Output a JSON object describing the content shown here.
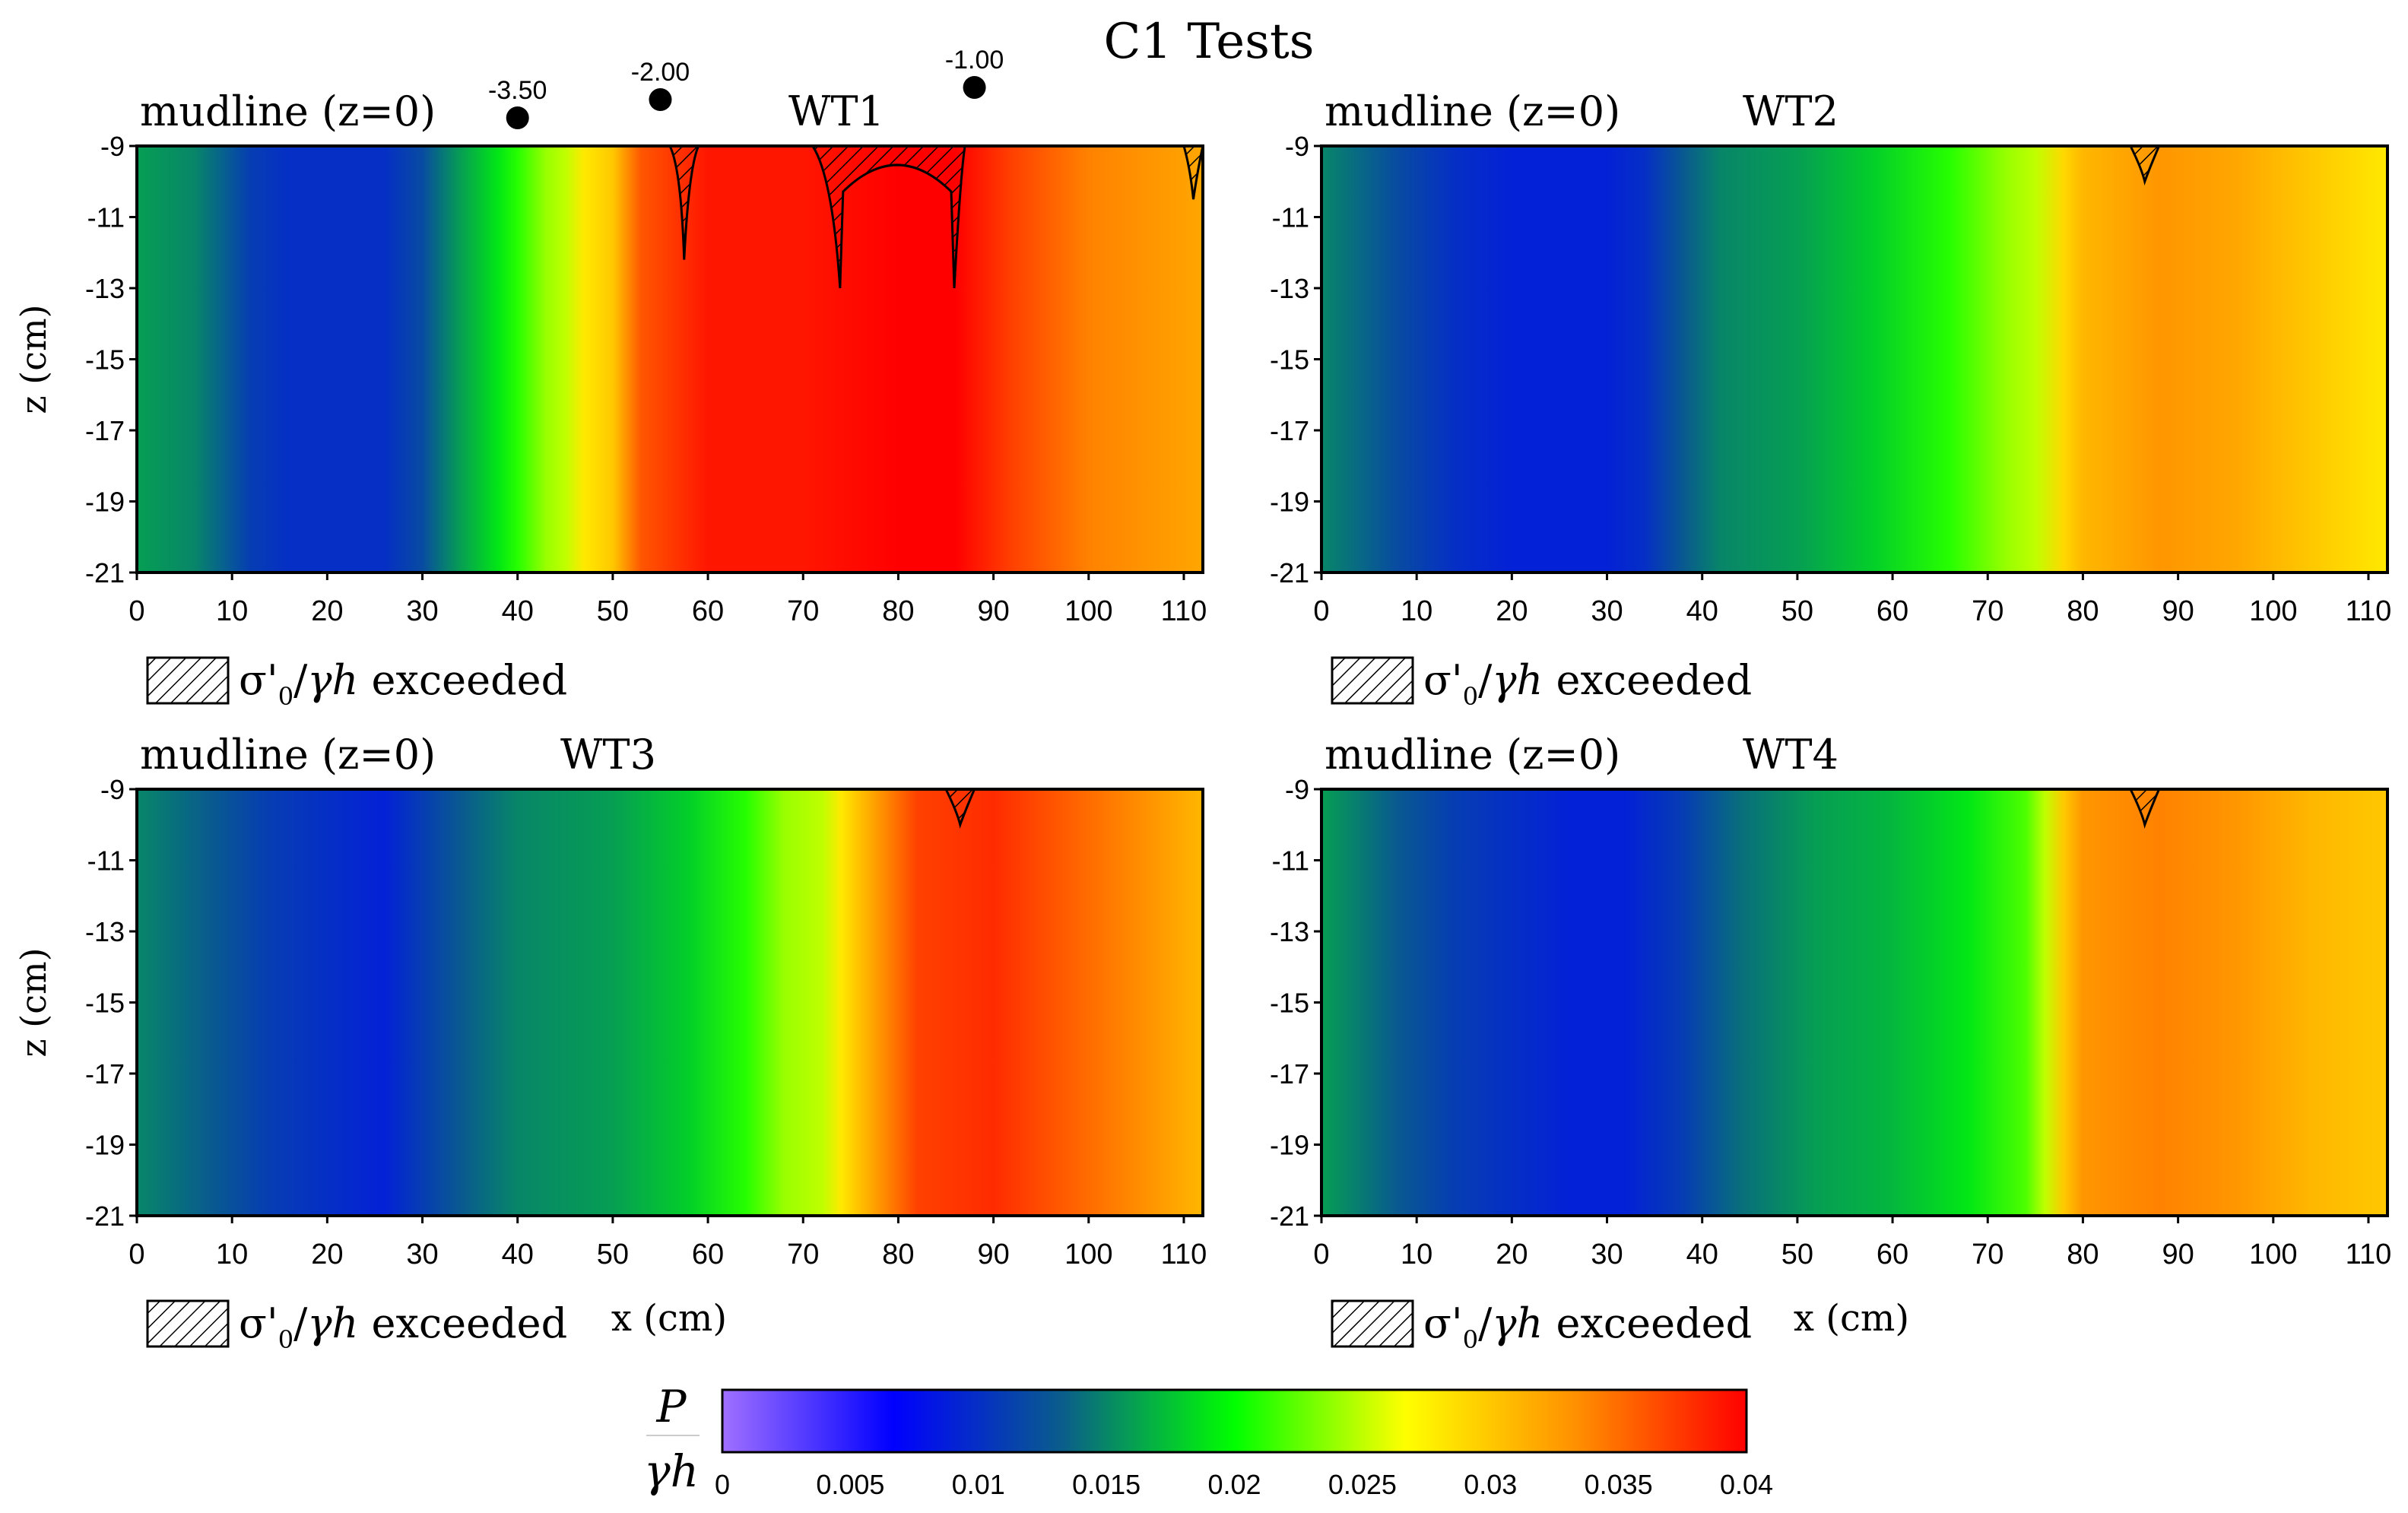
{
  "figure": {
    "title": "C1 Tests",
    "y_axis_label": "z (cm)",
    "x_axis_label": "x (cm)",
    "mudline_label": "mudline (z=0)",
    "hatch_legend": {
      "sigma": "σ'",
      "subscript": "0",
      "slash": "/",
      "gamma_h": "γh",
      "suffix": " exceeded"
    },
    "colorbar": {
      "label_numerator": "P",
      "label_denominator": "γh",
      "range": [
        0,
        0.04
      ],
      "ticks": [
        "0",
        "0.005",
        "0.01",
        "0.015",
        "0.02",
        "0.025",
        "0.03",
        "0.035",
        "0.04"
      ],
      "colors": [
        "#a070ff",
        "#0000ff",
        "#0a5e8a",
        "#00ff00",
        "#ffff00",
        "#ff9000",
        "#ff0000"
      ]
    }
  },
  "chart_data": [
    {
      "type": "heatmap",
      "name": "WT1",
      "xlim": [
        0,
        112
      ],
      "ylim": [
        -21,
        -9
      ],
      "x_ticks": [
        0,
        10,
        20,
        30,
        40,
        50,
        60,
        70,
        80,
        90,
        100,
        110
      ],
      "y_ticks": [
        -9,
        -11,
        -13,
        -15,
        -17,
        -19,
        -21
      ],
      "color_profile_x": [
        0,
        6,
        12,
        16,
        22,
        26,
        30,
        34,
        38,
        40,
        43,
        45,
        47,
        50,
        53,
        60,
        70,
        80,
        86,
        92,
        100,
        112
      ],
      "color_profile_value": [
        0.016,
        0.015,
        0.011,
        0.01,
        0.01,
        0.01,
        0.012,
        0.016,
        0.019,
        0.021,
        0.024,
        0.025,
        0.028,
        0.03,
        0.036,
        0.039,
        0.039,
        0.04,
        0.04,
        0.037,
        0.034,
        0.032
      ],
      "markers": [
        {
          "x": 40,
          "label": "-3.50"
        },
        {
          "x": 55,
          "label": "-2.00"
        },
        {
          "x": 88,
          "label": "-1.00"
        }
      ],
      "exceeded_regions": [
        {
          "x_start": 56,
          "x_end": 59,
          "z_min": -12.2
        },
        {
          "x_start": 71,
          "x_end": 87,
          "z_min": -13.0
        },
        {
          "x_start": 110,
          "x_end": 112,
          "z_min": -10.5
        }
      ]
    },
    {
      "type": "heatmap",
      "name": "WT2",
      "xlim": [
        0,
        112
      ],
      "ylim": [
        -21,
        -9
      ],
      "x_ticks": [
        0,
        10,
        20,
        30,
        40,
        50,
        60,
        70,
        80,
        90,
        100,
        110
      ],
      "y_ticks": [
        -9,
        -11,
        -13,
        -15,
        -17,
        -19,
        -21
      ],
      "color_profile_x": [
        0,
        8,
        14,
        20,
        30,
        34,
        38,
        42,
        50,
        58,
        66,
        72,
        75,
        78,
        80,
        88,
        96,
        104,
        112
      ],
      "color_profile_value": [
        0.015,
        0.012,
        0.01,
        0.009,
        0.009,
        0.01,
        0.013,
        0.015,
        0.016,
        0.018,
        0.021,
        0.024,
        0.025,
        0.029,
        0.031,
        0.033,
        0.032,
        0.03,
        0.028
      ],
      "markers": [],
      "exceeded_regions": [
        {
          "x_start": 85,
          "x_end": 88,
          "z_min": -10.0
        }
      ]
    },
    {
      "type": "heatmap",
      "name": "WT3",
      "xlim": [
        0,
        112
      ],
      "ylim": [
        -21,
        -9
      ],
      "x_ticks": [
        0,
        10,
        20,
        30,
        40,
        50,
        60,
        70,
        80,
        90,
        100,
        110
      ],
      "y_ticks": [
        -9,
        -11,
        -13,
        -15,
        -17,
        -19,
        -21
      ],
      "color_profile_x": [
        0,
        8,
        14,
        20,
        26,
        30,
        34,
        40,
        50,
        58,
        64,
        68,
        72,
        74,
        78,
        82,
        90,
        100,
        112
      ],
      "color_profile_value": [
        0.015,
        0.013,
        0.011,
        0.01,
        0.009,
        0.011,
        0.013,
        0.015,
        0.016,
        0.018,
        0.021,
        0.024,
        0.025,
        0.028,
        0.033,
        0.037,
        0.038,
        0.035,
        0.031
      ],
      "markers": [],
      "exceeded_regions": [
        {
          "x_start": 85,
          "x_end": 88,
          "z_min": -10.0
        }
      ]
    },
    {
      "type": "heatmap",
      "name": "WT4",
      "xlim": [
        0,
        112
      ],
      "ylim": [
        -21,
        -9
      ],
      "x_ticks": [
        0,
        10,
        20,
        30,
        40,
        50,
        60,
        70,
        80,
        90,
        100,
        110
      ],
      "y_ticks": [
        -9,
        -11,
        -13,
        -15,
        -17,
        -19,
        -21
      ],
      "color_profile_x": [
        0,
        8,
        14,
        20,
        26,
        32,
        38,
        44,
        52,
        60,
        68,
        74,
        76,
        78,
        80,
        88,
        96,
        104,
        112
      ],
      "color_profile_value": [
        0.016,
        0.013,
        0.011,
        0.01,
        0.009,
        0.009,
        0.011,
        0.014,
        0.016,
        0.017,
        0.019,
        0.022,
        0.025,
        0.03,
        0.033,
        0.034,
        0.033,
        0.031,
        0.03
      ],
      "markers": [],
      "exceeded_regions": [
        {
          "x_start": 85,
          "x_end": 88,
          "z_min": -10.0
        }
      ]
    }
  ]
}
